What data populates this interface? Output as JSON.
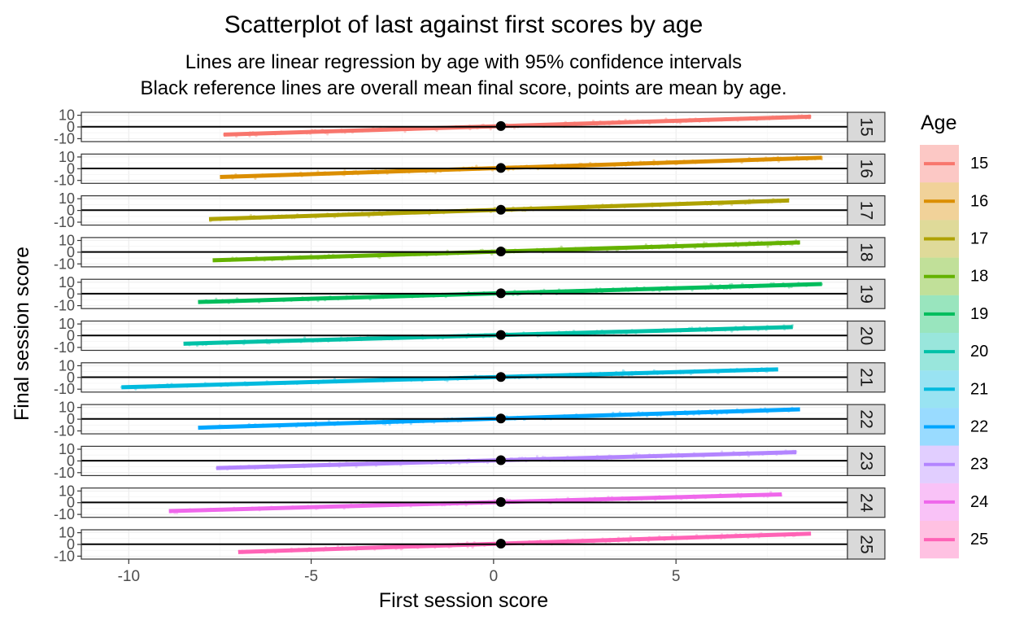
{
  "title": "Scatterplot of last against first scores by age",
  "subtitle_lines": [
    "Lines are linear regression by age with 95% confidence intervals",
    "Black reference lines are overall mean final score, points are mean by age."
  ],
  "chart_data": {
    "type": "scatter",
    "title": "Scatterplot of last against first scores by age",
    "xlabel": "First session score",
    "ylabel": "Final session score",
    "xlim": [
      -11.3,
      9.7
    ],
    "ylim": [
      -12.5,
      12.5
    ],
    "x_ticks": [
      -10,
      -5,
      0,
      5
    ],
    "y_ticks": [
      -10,
      0,
      10
    ],
    "y_tick_labels": [
      "-10",
      "0",
      "10"
    ],
    "grid": true,
    "facet_by": "Age",
    "reference_line_y": 0.2,
    "legend": {
      "title": "Age",
      "position": "right"
    },
    "series": [
      {
        "name": "15",
        "color": "#F8766D",
        "x_range": [
          -7.4,
          8.7
        ],
        "intercept": 0.5,
        "slope": 0.95,
        "mean_x": 0.2,
        "mean_y": 0.8
      },
      {
        "name": "16",
        "color": "#DB8E00",
        "x_range": [
          -7.5,
          9.0
        ],
        "intercept": 0.4,
        "slope": 1.0,
        "mean_x": 0.2,
        "mean_y": 0.6
      },
      {
        "name": "17",
        "color": "#AEA200",
        "x_range": [
          -7.8,
          8.1
        ],
        "intercept": 0.4,
        "slope": 1.0,
        "mean_x": 0.2,
        "mean_y": 0.6
      },
      {
        "name": "18",
        "color": "#64B200",
        "x_range": [
          -7.7,
          8.4
        ],
        "intercept": 0.4,
        "slope": 0.95,
        "mean_x": 0.2,
        "mean_y": 0.6
      },
      {
        "name": "19",
        "color": "#00BD5C",
        "x_range": [
          -8.1,
          9.0
        ],
        "intercept": 0.4,
        "slope": 0.9,
        "mean_x": 0.2,
        "mean_y": 0.6
      },
      {
        "name": "20",
        "color": "#00C1A7",
        "x_range": [
          -8.5,
          8.2
        ],
        "intercept": 0.4,
        "slope": 0.85,
        "mean_x": 0.2,
        "mean_y": 0.6
      },
      {
        "name": "21",
        "color": "#00BADE",
        "x_range": [
          -10.2,
          7.8
        ],
        "intercept": 0.3,
        "slope": 0.85,
        "mean_x": 0.2,
        "mean_y": 0.4
      },
      {
        "name": "22",
        "color": "#00A6FF",
        "x_range": [
          -8.1,
          8.4
        ],
        "intercept": 0.4,
        "slope": 0.95,
        "mean_x": 0.2,
        "mean_y": 0.6
      },
      {
        "name": "23",
        "color": "#B385FF",
        "x_range": [
          -7.6,
          8.3
        ],
        "intercept": 0.4,
        "slope": 0.85,
        "mean_x": 0.2,
        "mean_y": 0.6
      },
      {
        "name": "24",
        "color": "#EF67EB",
        "x_range": [
          -8.9,
          7.9
        ],
        "intercept": 0.4,
        "slope": 0.85,
        "mean_x": 0.2,
        "mean_y": 0.6
      },
      {
        "name": "25",
        "color": "#FF63B6",
        "x_range": [
          -7.0,
          8.7
        ],
        "intercept": 0.5,
        "slope": 1.0,
        "mean_x": 0.2,
        "mean_y": 0.7
      }
    ]
  }
}
